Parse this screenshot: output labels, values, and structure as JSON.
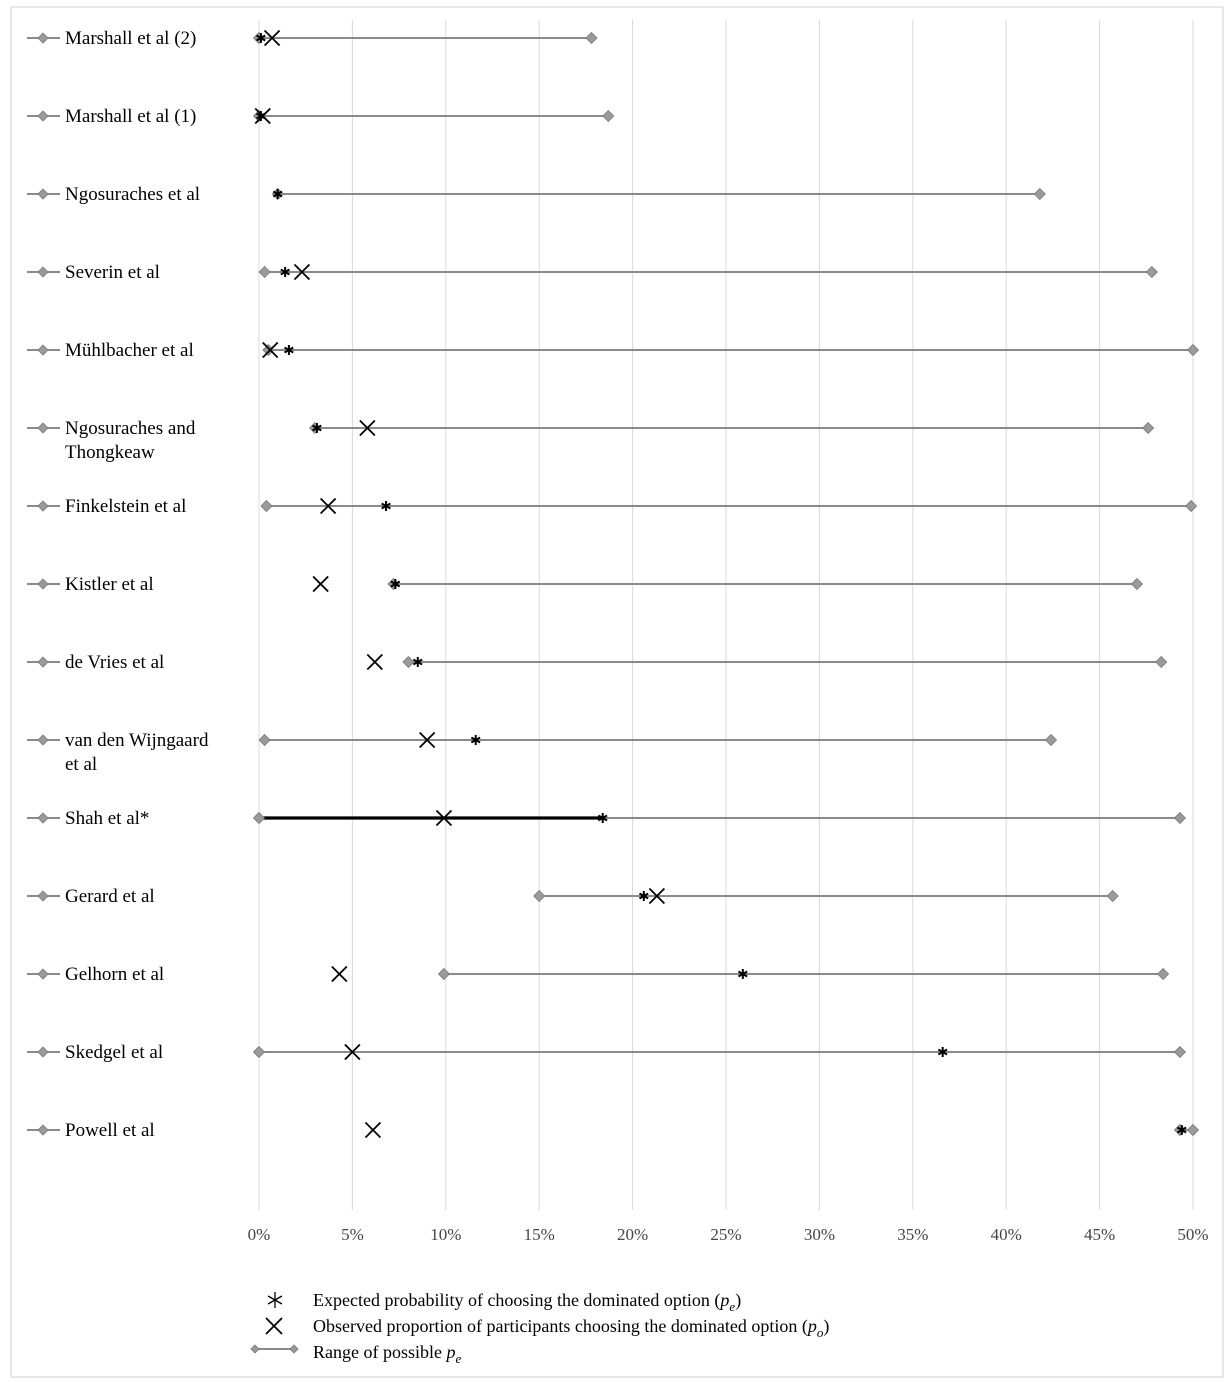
{
  "chart_data": {
    "type": "range-dot",
    "xlim": [
      0,
      50
    ],
    "x_ticks": [
      "0%",
      "5%",
      "10%",
      "15%",
      "20%",
      "25%",
      "30%",
      "35%",
      "40%",
      "45%",
      "50%"
    ],
    "grid": "vertical",
    "legend_position": "bottom",
    "colors": {
      "range_line": "#8a8a8a",
      "range_marker": "#9a9a9a",
      "expected_marker": "#000000",
      "observed_marker": "#000000",
      "highlight_line": "#000000"
    },
    "studies": [
      {
        "label": [
          "Marshall et al (2)"
        ],
        "range": [
          0,
          17.8
        ],
        "expected": 0.1,
        "observed": 0.7
      },
      {
        "label": [
          "Marshall et al (1)"
        ],
        "range": [
          0,
          18.7
        ],
        "expected": 0.1,
        "observed": 0.2
      },
      {
        "label": [
          "Ngosuraches et al"
        ],
        "range": [
          1.0,
          41.8
        ],
        "expected": 1.0,
        "observed": null
      },
      {
        "label": [
          "Severin et al"
        ],
        "range": [
          0.3,
          47.8
        ],
        "expected": 1.4,
        "observed": 2.3
      },
      {
        "label": [
          "Mühlbacher et al"
        ],
        "range": [
          0.5,
          50.0
        ],
        "expected": 1.6,
        "observed": 0.6
      },
      {
        "label": [
          "Ngosuraches and",
          "Thongkeaw"
        ],
        "range": [
          3.0,
          47.6
        ],
        "expected": 3.1,
        "observed": 5.8
      },
      {
        "label": [
          "Finkelstein et al"
        ],
        "range": [
          0.4,
          49.9
        ],
        "expected": 6.8,
        "observed": 3.7
      },
      {
        "label": [
          "Kistler et al"
        ],
        "range": [
          7.2,
          47.0
        ],
        "expected": 7.3,
        "observed": 3.3
      },
      {
        "label": [
          "de Vries et al"
        ],
        "range": [
          8.0,
          48.3
        ],
        "expected": 8.5,
        "observed": 6.2
      },
      {
        "label": [
          "van den Wijngaard",
          "et al"
        ],
        "range": [
          0.3,
          42.4
        ],
        "expected": 11.6,
        "observed": 9.0
      },
      {
        "label": [
          "Shah et al*"
        ],
        "range": [
          0,
          49.3
        ],
        "expected": 18.4,
        "observed": 9.9,
        "highlight": [
          0,
          18.4
        ]
      },
      {
        "label": [
          "Gerard et al"
        ],
        "range": [
          15.0,
          45.7
        ],
        "expected": 20.6,
        "observed": 21.3
      },
      {
        "label": [
          "Gelhorn et al"
        ],
        "range": [
          9.9,
          48.4
        ],
        "expected": 25.9,
        "observed": 4.3
      },
      {
        "label": [
          "Skedgel et al"
        ],
        "range": [
          0,
          49.3
        ],
        "expected": 36.6,
        "observed": 5.0
      },
      {
        "label": [
          "Powell et al"
        ],
        "range": [
          49.3,
          50.0
        ],
        "expected": 49.4,
        "observed": 6.1
      }
    ],
    "legend": [
      {
        "marker": "asterisk",
        "text": "Expected probability of choosing the dominated option (",
        "symbol": "p",
        "sub": "e",
        "suffix": ")"
      },
      {
        "marker": "x",
        "text": "Observed proportion of participants choosing the dominated option (",
        "symbol": "p",
        "sub": "o",
        "suffix": ")"
      },
      {
        "marker": "range",
        "text": "Range of possible ",
        "symbol": "p",
        "sub": "e",
        "suffix": ""
      }
    ]
  }
}
